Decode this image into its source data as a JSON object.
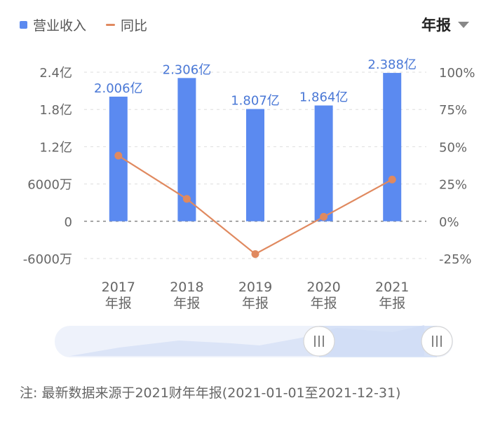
{
  "legend": {
    "bar_label": "营业收入",
    "line_label": "同比"
  },
  "period_selector": {
    "label": "年报"
  },
  "note": "注: 最新数据来源于2021财年年报(2021-01-01至2021-12-31)",
  "colors": {
    "bar": "#5b8af0",
    "line": "#e0895f",
    "label": "#4a78d6",
    "axis": "#666666",
    "grid": "#dddddd"
  },
  "chart_data": {
    "type": "bar",
    "categories": [
      "2017\n年报",
      "2018\n年报",
      "2019\n年报",
      "2020\n年报",
      "2021\n年报"
    ],
    "series": [
      {
        "name": "营业收入",
        "type": "bar",
        "axis": "left",
        "values": [
          2.006,
          2.306,
          1.807,
          1.864,
          2.388
        ],
        "data_labels": [
          "2.006亿",
          "2.306亿",
          "1.807亿",
          "1.864亿",
          "2.388亿"
        ]
      },
      {
        "name": "同比",
        "type": "line",
        "axis": "right",
        "values": [
          44,
          15,
          -22,
          3,
          28
        ]
      }
    ],
    "y_left": {
      "ylim": [
        -0.6,
        2.4
      ],
      "ticks": [
        2.4,
        1.8,
        1.2,
        0.6,
        0,
        -0.6
      ],
      "tick_labels": [
        "2.4亿",
        "1.8亿",
        "1.2亿",
        "6000万",
        "0",
        "-6000万"
      ]
    },
    "y_right": {
      "ylim": [
        -25,
        100
      ],
      "ticks": [
        100,
        75,
        50,
        25,
        0,
        -25
      ],
      "tick_labels": [
        "100%",
        "75%",
        "50%",
        "25%",
        "0%",
        "-25%"
      ]
    },
    "grid": true,
    "legend_position": "top-left"
  },
  "range_slider": {
    "handle_icon": "grip-lines-icon",
    "handle_glyph": "|||"
  }
}
